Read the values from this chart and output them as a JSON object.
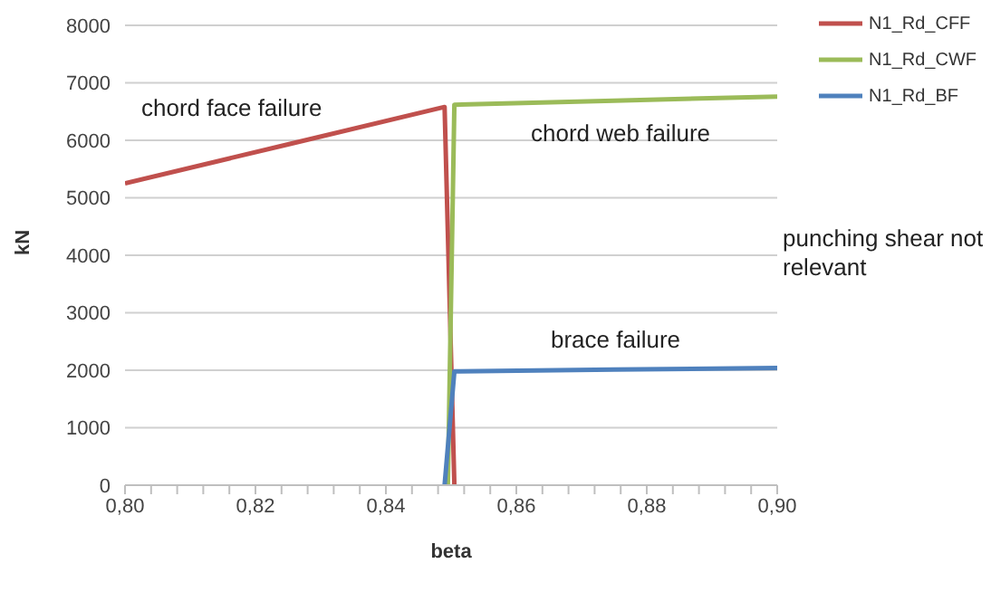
{
  "chart_data": {
    "type": "line",
    "xlabel": "beta",
    "ylabel": "kN",
    "series": [
      {
        "name": "N1_Rd_CFF",
        "color": "#c0504d",
        "x": [
          0.8,
          0.825,
          0.849,
          0.8505
        ],
        "values": [
          5250,
          5930,
          6580,
          0
        ]
      },
      {
        "name": "N1_Rd_CWF",
        "color": "#9bbb59",
        "x": [
          0.8495,
          0.8505,
          0.875,
          0.9
        ],
        "values": [
          0,
          6620,
          6690,
          6760
        ]
      },
      {
        "name": "N1_Rd_BF",
        "color": "#4f81bd",
        "x": [
          0.849,
          0.8505,
          0.875,
          0.9
        ],
        "values": [
          0,
          1980,
          2010,
          2040
        ]
      }
    ],
    "xlim": [
      0.8,
      0.9
    ],
    "xticks": [
      {
        "value": 0.8,
        "label": "0,80"
      },
      {
        "value": 0.804,
        "label": null
      },
      {
        "value": 0.808,
        "label": null
      },
      {
        "value": 0.812,
        "label": null
      },
      {
        "value": 0.816,
        "label": null
      },
      {
        "value": 0.82,
        "label": "0,82"
      },
      {
        "value": 0.824,
        "label": null
      },
      {
        "value": 0.828,
        "label": null
      },
      {
        "value": 0.832,
        "label": null
      },
      {
        "value": 0.836,
        "label": null
      },
      {
        "value": 0.84,
        "label": "0,84"
      },
      {
        "value": 0.844,
        "label": null
      },
      {
        "value": 0.848,
        "label": null
      },
      {
        "value": 0.852,
        "label": null
      },
      {
        "value": 0.856,
        "label": null
      },
      {
        "value": 0.86,
        "label": "0,86"
      },
      {
        "value": 0.864,
        "label": null
      },
      {
        "value": 0.868,
        "label": null
      },
      {
        "value": 0.872,
        "label": null
      },
      {
        "value": 0.876,
        "label": null
      },
      {
        "value": 0.88,
        "label": "0,88"
      },
      {
        "value": 0.884,
        "label": null
      },
      {
        "value": 0.888,
        "label": null
      },
      {
        "value": 0.892,
        "label": null
      },
      {
        "value": 0.896,
        "label": null
      },
      {
        "value": 0.9,
        "label": "0,90"
      }
    ],
    "ylim": [
      0,
      8000
    ],
    "yticks": [
      0,
      1000,
      2000,
      3000,
      4000,
      5000,
      6000,
      7000,
      8000
    ],
    "grid": "y",
    "legend": "top right",
    "marker": "none",
    "line_style": "solid",
    "annotations": [
      "chord face failure",
      "chord web failure",
      "brace failure",
      "punching shear not relevant"
    ]
  }
}
